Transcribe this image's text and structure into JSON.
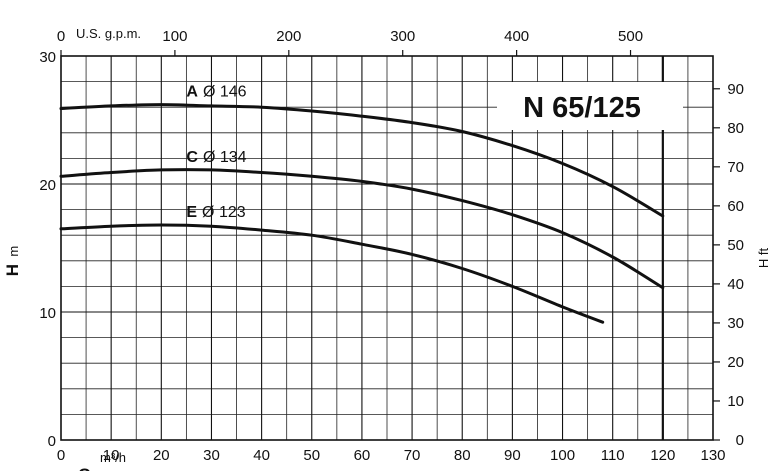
{
  "chart_data": {
    "type": "line",
    "title": "N 65/125",
    "xlabel": "Q",
    "x_unit": "m³/h",
    "x_unit_secondary": "U.S. g.p.m.",
    "ylabel": "H",
    "y_unit": "m",
    "y2label": "H ft",
    "xlim": [
      0,
      130
    ],
    "ylim": [
      0,
      30
    ],
    "x2lim": [
      0,
      572.4
    ],
    "y2lim": [
      0,
      98.4
    ],
    "x_ticks": [
      "0",
      "10",
      "20",
      "30",
      "40",
      "50",
      "60",
      "70",
      "80",
      "90",
      "100",
      "110",
      "120",
      "130"
    ],
    "y_ticks": [
      "0",
      "10",
      "20",
      "30"
    ],
    "x2_ticks": [
      "0",
      "100",
      "200",
      "300",
      "400",
      "500"
    ],
    "y2_ticks": [
      "0",
      "10",
      "20",
      "30",
      "40",
      "50",
      "60",
      "70",
      "80",
      "90"
    ],
    "grid": true,
    "series": [
      {
        "name": "A",
        "diameter_label": "Ø 146",
        "x": [
          0,
          10,
          20,
          30,
          40,
          50,
          60,
          70,
          80,
          90,
          100,
          110,
          120
        ],
        "y": [
          25.9,
          26.1,
          26.2,
          26.1,
          26.0,
          25.7,
          25.3,
          24.8,
          24.1,
          23.0,
          21.6,
          19.8,
          17.5
        ]
      },
      {
        "name": "C",
        "diameter_label": "Ø 134",
        "x": [
          0,
          10,
          20,
          30,
          40,
          50,
          60,
          70,
          80,
          90,
          100,
          110,
          120
        ],
        "y": [
          20.6,
          20.9,
          21.1,
          21.1,
          20.9,
          20.6,
          20.2,
          19.6,
          18.7,
          17.6,
          16.2,
          14.3,
          11.9
        ]
      },
      {
        "name": "E",
        "diameter_label": "Ø 123",
        "x": [
          0,
          10,
          20,
          30,
          40,
          50,
          60,
          70,
          80,
          90,
          100,
          108
        ],
        "y": [
          16.5,
          16.7,
          16.8,
          16.7,
          16.4,
          16.0,
          15.3,
          14.5,
          13.4,
          12.0,
          10.4,
          9.2
        ]
      }
    ]
  }
}
